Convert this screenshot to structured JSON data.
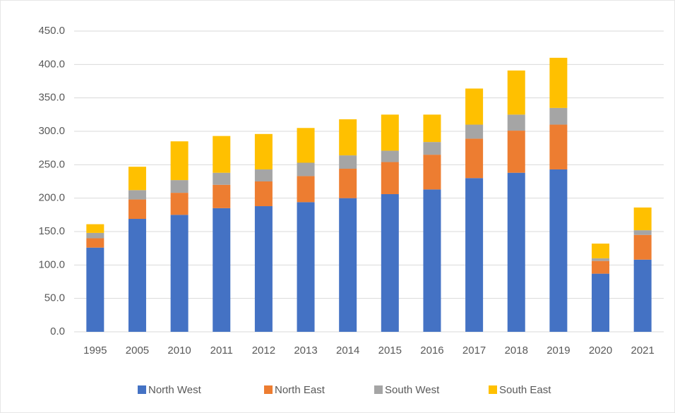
{
  "chart_data": {
    "type": "bar",
    "stacked": true,
    "categories": [
      "1995",
      "2005",
      "2010",
      "2011",
      "2012",
      "2013",
      "2014",
      "2015",
      "2016",
      "2017",
      "2018",
      "2019",
      "2020",
      "2021"
    ],
    "series": [
      {
        "name": "North West",
        "color": "#4472c4",
        "values": [
          126,
          169,
          175,
          185,
          188,
          194,
          200,
          206,
          213,
          230,
          238,
          243,
          87,
          108
        ]
      },
      {
        "name": "North East",
        "color": "#ed7d31",
        "values": [
          14,
          29,
          33,
          35,
          37,
          39,
          44,
          48,
          52,
          59,
          63,
          67,
          19,
          37
        ]
      },
      {
        "name": "South West",
        "color": "#a5a5a5",
        "values": [
          8,
          14,
          19,
          18,
          18,
          20,
          20,
          17,
          19,
          21,
          24,
          25,
          4,
          7
        ]
      },
      {
        "name": "South East",
        "color": "#ffc000",
        "values": [
          13,
          35,
          58,
          55,
          53,
          52,
          54,
          54,
          41,
          54,
          66,
          75,
          22,
          34
        ]
      }
    ],
    "ylim": [
      0,
      450
    ],
    "yticks": [
      {
        "value": 0,
        "label": "0.0"
      },
      {
        "value": 50,
        "label": "50.0"
      },
      {
        "value": 100,
        "label": "100.0"
      },
      {
        "value": 150,
        "label": "150.0"
      },
      {
        "value": 200,
        "label": "200.0"
      },
      {
        "value": 250,
        "label": "250.0"
      },
      {
        "value": 300,
        "label": "300.0"
      },
      {
        "value": 350,
        "label": "350.0"
      },
      {
        "value": 400,
        "label": "400.0"
      },
      {
        "value": 450,
        "label": "450.0"
      }
    ],
    "grid": true,
    "legend": "bottom"
  }
}
